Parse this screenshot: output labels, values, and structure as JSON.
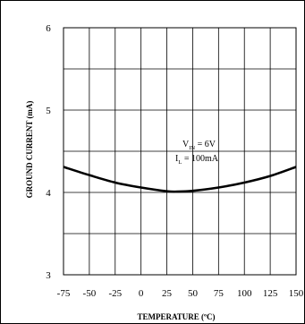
{
  "chart_data": {
    "type": "line",
    "title": "",
    "xlabel": "TEMPERATURE (ºC)",
    "ylabel": "GROUND CURRENT (mA)",
    "xlim": [
      -75,
      150
    ],
    "ylim": [
      3,
      6
    ],
    "x_ticks": [
      -75,
      -50,
      -25,
      0,
      25,
      50,
      75,
      100,
      125,
      150
    ],
    "x_tick_labels": [
      "-75",
      "-50",
      "-25",
      "0",
      "25",
      "50",
      "75",
      "100",
      "125",
      "150"
    ],
    "y_ticks": [
      3,
      4,
      5,
      6
    ],
    "y_tick_labels": [
      "3",
      "4",
      "5",
      "6"
    ],
    "grid": true,
    "grid_minor_y_step": 0.5,
    "annotation": {
      "line1": {
        "main": "V",
        "sub": "IN",
        "rest": " = 6V"
      },
      "line2": {
        "main": "I",
        "sub": "L",
        "rest": " = 100mA"
      }
    },
    "series": [
      {
        "x": [
          -75,
          -50,
          -25,
          0,
          25,
          35,
          50,
          75,
          100,
          125,
          150
        ],
        "y": [
          4.31,
          4.21,
          4.12,
          4.06,
          4.015,
          4.01,
          4.02,
          4.06,
          4.12,
          4.2,
          4.31
        ],
        "color": "#000000"
      }
    ]
  }
}
